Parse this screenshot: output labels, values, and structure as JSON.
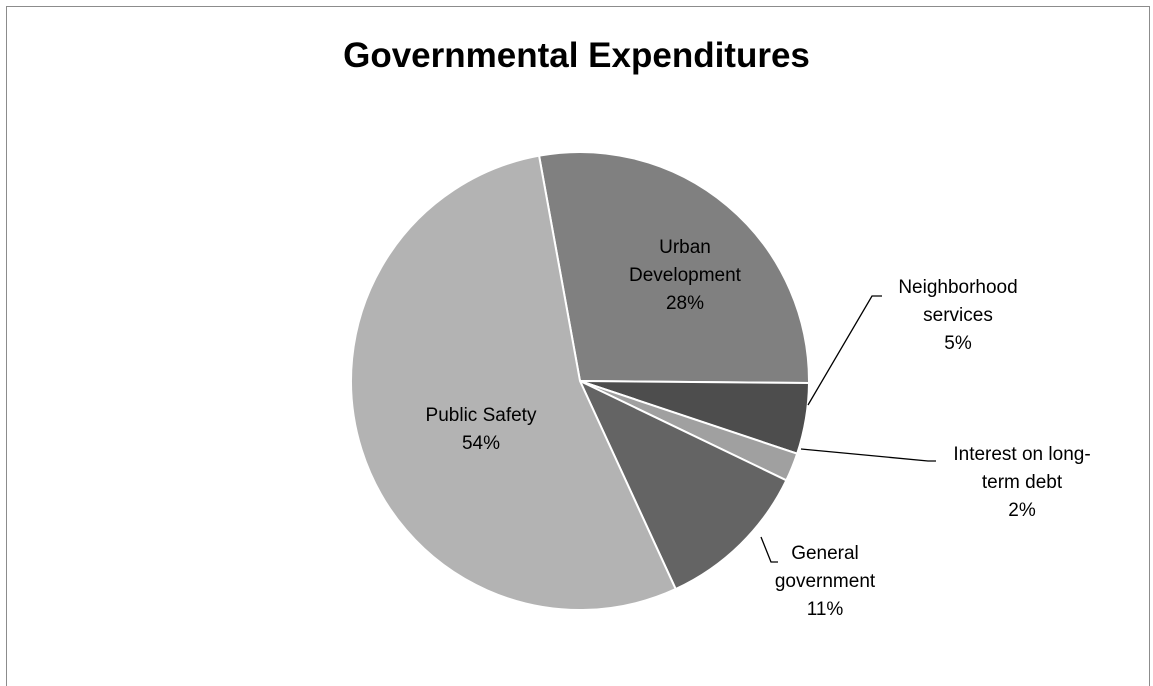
{
  "chart_data": {
    "type": "pie",
    "title": "Governmental Expenditures",
    "slices": [
      {
        "label_lines": [
          "Urban",
          "Development"
        ],
        "pct_label": "28%",
        "value": 28,
        "color": "#808080",
        "callout": false
      },
      {
        "label_lines": [
          "Neighborhood",
          "services"
        ],
        "pct_label": "5%",
        "value": 5,
        "color": "#4d4d4d",
        "callout": true
      },
      {
        "label_lines": [
          "Interest on long-",
          "term debt"
        ],
        "pct_label": "2%",
        "value": 2,
        "color": "#a0a0a0",
        "callout": true
      },
      {
        "label_lines": [
          "General",
          "government"
        ],
        "pct_label": "11%",
        "value": 11,
        "color": "#646464",
        "callout": true
      },
      {
        "label_lines": [
          "Public Safety"
        ],
        "pct_label": "54%",
        "value": 54,
        "color": "#b3b3b3",
        "callout": false
      }
    ],
    "start_angle_deg": -10.3,
    "direction": "clockwise",
    "legend": "none"
  }
}
